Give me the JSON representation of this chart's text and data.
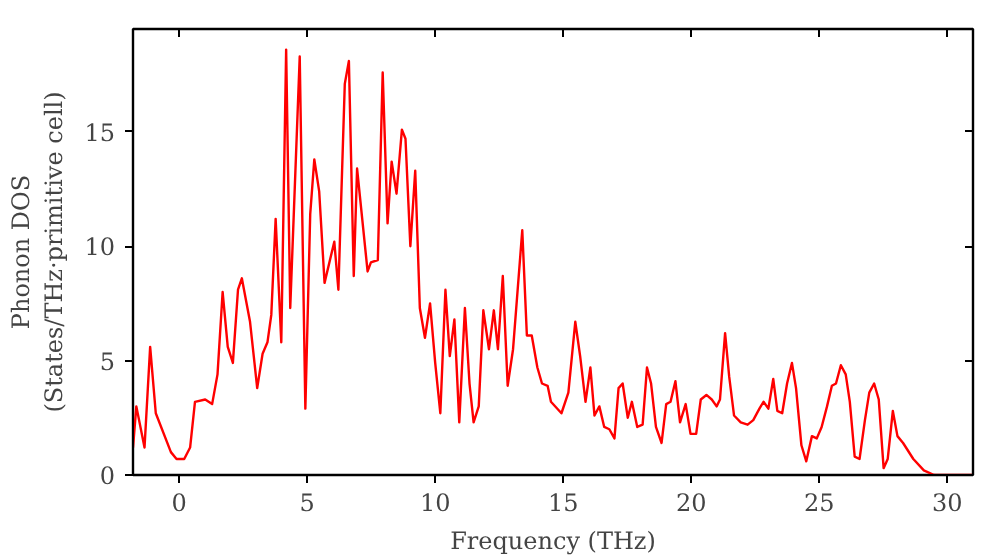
{
  "chart_data": {
    "type": "line",
    "xlabel": "Frequency (THz)",
    "ylabel": "Phonon DOS\n(States/THz·primitive cell)",
    "xlim": [
      -1.8,
      31
    ],
    "ylim": [
      0,
      19.5
    ],
    "xticks": [
      0,
      5,
      10,
      15,
      20,
      25,
      30
    ],
    "yticks": [
      0,
      5,
      10,
      15
    ],
    "grid": false,
    "marker": "none",
    "line_style": "solid",
    "series": [
      {
        "color": "#ff0000",
        "x": [
          -1.8,
          -1.67,
          -1.35,
          -1.13,
          -0.91,
          -0.32,
          -0.1,
          0.2,
          0.43,
          0.62,
          1.02,
          1.29,
          1.5,
          1.7,
          1.9,
          2.1,
          2.3,
          2.45,
          2.77,
          3.05,
          3.26,
          3.45,
          3.6,
          3.77,
          3.99,
          4.18,
          4.34,
          4.71,
          4.93,
          5.12,
          5.28,
          5.47,
          5.68,
          6.06,
          6.22,
          6.47,
          6.63,
          6.82,
          6.95,
          7.36,
          7.49,
          7.76,
          7.95,
          8.14,
          8.3,
          8.49,
          8.7,
          8.84,
          9.03,
          9.22,
          9.4,
          9.6,
          9.8,
          10.0,
          10.2,
          10.4,
          10.57,
          10.75,
          10.94,
          11.16,
          11.34,
          11.5,
          11.7,
          11.88,
          12.1,
          12.29,
          12.45,
          12.64,
          12.83,
          13.04,
          13.4,
          13.58,
          13.77,
          13.99,
          14.17,
          14.39,
          14.52,
          14.93,
          15.2,
          15.47,
          15.66,
          15.87,
          16.06,
          16.22,
          16.41,
          16.6,
          16.8,
          17.0,
          17.16,
          17.32,
          17.52,
          17.68,
          17.89,
          18.1,
          18.27,
          18.43,
          18.62,
          18.84,
          19.02,
          19.19,
          19.38,
          19.56,
          19.78,
          19.97,
          20.19,
          20.37,
          20.59,
          20.8,
          20.99,
          21.12,
          21.32,
          21.48,
          21.67,
          21.93,
          22.2,
          22.42,
          22.66,
          22.82,
          23.01,
          23.2,
          23.36,
          23.55,
          23.74,
          23.93,
          24.09,
          24.3,
          24.49,
          24.71,
          24.9,
          25.09,
          25.3,
          25.49,
          25.65,
          25.84,
          26.03,
          26.19,
          26.38,
          26.57,
          26.78,
          26.95,
          27.14,
          27.32,
          27.51,
          27.67,
          27.87,
          28.05,
          28.27,
          28.67,
          29.08,
          29.48,
          30.96
        ],
        "values": [
          1.2,
          3.0,
          1.2,
          5.6,
          2.7,
          1.0,
          0.7,
          0.7,
          1.2,
          3.2,
          3.3,
          3.1,
          4.4,
          8.0,
          5.6,
          4.9,
          8.1,
          8.6,
          6.7,
          3.8,
          5.3,
          5.8,
          7.0,
          11.2,
          5.8,
          18.6,
          7.3,
          18.3,
          2.9,
          11.4,
          13.8,
          12.4,
          8.4,
          10.2,
          8.1,
          17.1,
          18.1,
          8.7,
          13.4,
          8.9,
          9.3,
          9.4,
          17.6,
          11.0,
          13.7,
          12.3,
          15.1,
          14.7,
          10.0,
          13.3,
          7.3,
          6.0,
          7.5,
          4.9,
          2.7,
          8.1,
          5.2,
          6.8,
          2.3,
          7.3,
          4.0,
          2.3,
          3.0,
          7.2,
          5.5,
          7.2,
          5.5,
          8.7,
          3.9,
          5.5,
          10.7,
          6.1,
          6.1,
          4.7,
          4.0,
          3.9,
          3.2,
          2.7,
          3.6,
          6.7,
          5.2,
          3.2,
          4.7,
          2.6,
          3.0,
          2.1,
          2.0,
          1.6,
          3.8,
          4.0,
          2.5,
          3.2,
          2.1,
          2.2,
          4.7,
          4.0,
          2.1,
          1.4,
          3.1,
          3.2,
          4.1,
          2.3,
          3.1,
          1.8,
          1.8,
          3.3,
          3.5,
          3.3,
          3.0,
          3.3,
          6.2,
          4.3,
          2.6,
          2.3,
          2.2,
          2.4,
          2.9,
          3.2,
          2.9,
          4.2,
          2.8,
          2.7,
          4.0,
          4.9,
          3.8,
          1.3,
          0.6,
          1.7,
          1.6,
          2.1,
          3.0,
          3.9,
          4.0,
          4.8,
          4.4,
          3.2,
          0.8,
          0.7,
          2.4,
          3.6,
          4.0,
          3.3,
          0.3,
          0.7,
          2.8,
          1.7,
          1.4,
          0.7,
          0.2,
          0,
          0
        ]
      }
    ]
  }
}
